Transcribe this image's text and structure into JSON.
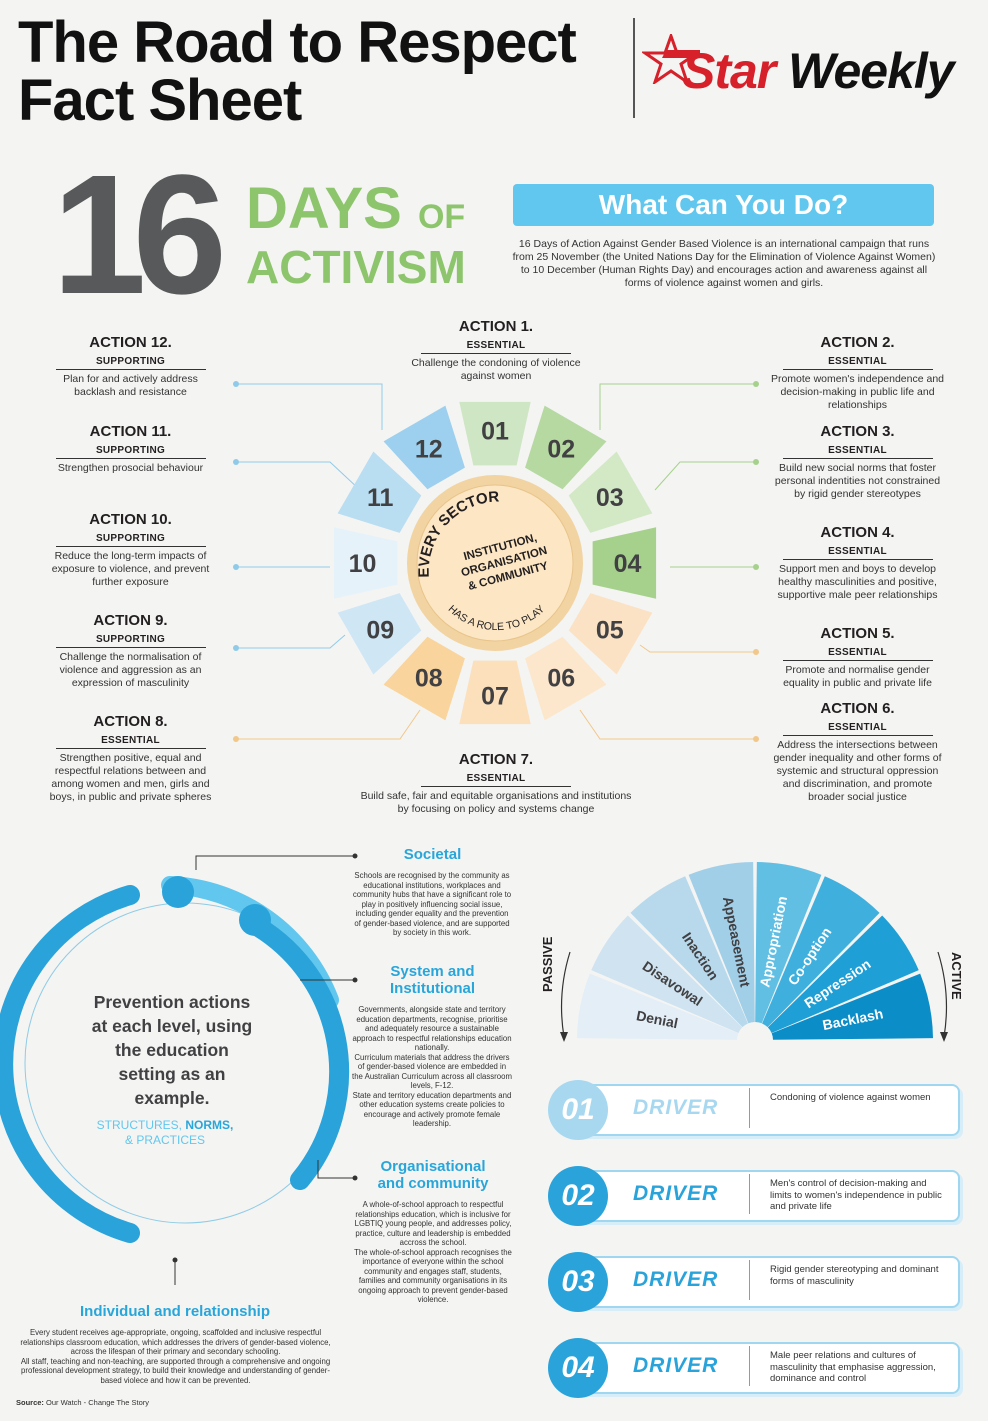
{
  "header": {
    "title_line1": "The Road to Respect",
    "title_line2": "Fact Sheet"
  },
  "logo": {
    "star": "Star",
    "weekly": "Weekly",
    "icon": "star-icon",
    "brand_color": "#d6202a"
  },
  "hero": {
    "number": "16",
    "days": "DAYS",
    "of": "OF",
    "activism": "ACTIVISM"
  },
  "what_can_you_do": {
    "heading": "What Can You Do?",
    "intro": "16 Days of Action Against Gender Based Violence is an international campaign that runs from 25 November (the United Nations Day for the Elimination of Violence Against Women) to 10 December (Human Rights Day) and encourages action and awareness against all forms of violence against women and girls."
  },
  "actions": [
    {
      "title": "ACTION 1.",
      "category": "ESSENTIAL",
      "desc": "Challenge the condoning of violence against women"
    },
    {
      "title": "ACTION 2.",
      "category": "ESSENTIAL",
      "desc": "Promote women's independence and decision-making in public life and relationships"
    },
    {
      "title": "ACTION 3.",
      "category": "ESSENTIAL",
      "desc": "Build new social norms that foster personal indentities not constrained by rigid gender stereotypes"
    },
    {
      "title": "ACTION 4.",
      "category": "ESSENTIAL",
      "desc": "Support men and boys to develop healthy masculinities and positive, supportive male peer relationships"
    },
    {
      "title": "ACTION 5.",
      "category": "ESSENTIAL",
      "desc": "Promote and normalise gender equality in public and private life"
    },
    {
      "title": "ACTION 6.",
      "category": "ESSENTIAL",
      "desc": "Address the intersections between gender inequality and other forms of systemic and structural oppression and discrimination, and promote broader social justice"
    },
    {
      "title": "ACTION 7.",
      "category": "ESSENTIAL",
      "desc": "Build safe, fair and equitable organisations and institutions by focusing on policy and systems change"
    },
    {
      "title": "ACTION 8.",
      "category": "ESSENTIAL",
      "desc": "Strengthen positive, equal and respectful relations between and among women and men, girls and boys, in public and private spheres"
    },
    {
      "title": "ACTION 9.",
      "category": "SUPPORTING",
      "desc": "Challenge the normalisation of violence and aggression as an expression of masculinity"
    },
    {
      "title": "ACTION 10.",
      "category": "SUPPORTING",
      "desc": "Reduce the long-term impacts of exposure to violence, and prevent further exposure"
    },
    {
      "title": "ACTION 11.",
      "category": "SUPPORTING",
      "desc": "Strengthen prosocial behaviour"
    },
    {
      "title": "ACTION 12.",
      "category": "SUPPORTING",
      "desc": "Plan for and actively address backlash and resistance"
    }
  ],
  "wheel": {
    "segments": [
      "01",
      "02",
      "03",
      "04",
      "05",
      "06",
      "07",
      "08",
      "09",
      "10",
      "11",
      "12"
    ],
    "colors": [
      "#cfe6c4",
      "#b5d9a1",
      "#d3e9c6",
      "#a6d18c",
      "#fbe2c4",
      "#fce7cc",
      "#fbe0bb",
      "#f9d49c",
      "#cfe6f5",
      "#e6f2fa",
      "#b9ddf1",
      "#9dd0ee"
    ],
    "center_top": "EVERY SECTOR",
    "center_mid": [
      "INSTITUTION,",
      "ORGANISATION",
      "& COMMUNITY"
    ],
    "center_bottom": "HAS A ROLE TO PLAY"
  },
  "levels": {
    "societal": {
      "title": "Societal",
      "body": "Schools are recognised by the community as educational institutions, workplaces and community hubs that have a significant role to play in positively influencing social issue, including gender equality and the prevention of gender-based violence, and are supported by society in this work."
    },
    "system": {
      "title_line1": "System and",
      "title_line2": "Institutional",
      "body1": "Governments, alongside state and territory education departments, recognise, prioritise and adequately resource a sustainable approach to respectful relationships education nationally.",
      "body2": "Curriculum materials that address the drivers of gender-based violence are embedded in the Australian Curriculum across all classroom levels, F-12.",
      "body3": "State and territory education departments and other education systems create policies to encourage and actively promote female leadership."
    },
    "organisational": {
      "title_line1": "Organisational",
      "title_line2": "and community",
      "body1": "A whole-of-school approach to respectful relationships education, which is inclusive for LGBTIQ young people, and addresses policy, practice, culture and leadership is embedded accross the school.",
      "body2": "The whole-of-school approach recognises the importance of everyone within the school community and engages staff, students, families and community organisations in its ongoing approach to prevent gender-based violence."
    },
    "individual": {
      "title": "Individual and relationship",
      "body1": "Every student receives age-appropriate, ongoing, scaffolded and inclusive respectful relationships classroom education, which addresses the drivers of gender-based violence, across the lifespan of their primary and secondary schooling.",
      "body2": "All staff, teaching and non-teaching, are supported through a comprehensive and ongoing professional development strategy, to build their knowledge and understanding of gender-based violece and how it can be prevented."
    }
  },
  "prevention": {
    "line1": "Prevention actions",
    "line2": "at each level, using",
    "line3": "the education",
    "line4": "setting as an",
    "line5": "example.",
    "structures": "STRUCTURES,",
    "norms": "NORMS,",
    "practices": "& PRACTICES"
  },
  "source": {
    "label": "Source:",
    "text": "Our Watch - Change The Story"
  },
  "gauge": {
    "passive": "PASSIVE",
    "active": "ACTIVE",
    "segments": [
      "Denial",
      "Disavowal",
      "Inaction",
      "Appeasement",
      "Appropriation",
      "Co-option",
      "Repression",
      "Backlash"
    ],
    "colors": [
      "#e3eef6",
      "#cfe3f0",
      "#b8d9ec",
      "#a2cfe8",
      "#62bfe4",
      "#3fb0de",
      "#1e9fd6",
      "#0b8dc8"
    ]
  },
  "drivers": [
    {
      "num": "01",
      "label": "DRIVER",
      "desc": "Condoning of violence against women",
      "color": "#a7d8f0",
      "label_color": "#a7d8f0"
    },
    {
      "num": "02",
      "label": "DRIVER",
      "desc": "Men's control of decision-making and limits to women's independence in public and private life",
      "color": "#2aa3da",
      "label_color": "#2aa3da"
    },
    {
      "num": "03",
      "label": "DRIVER",
      "desc": "Rigid gender stereotyping and dominant forms of masculinity",
      "color": "#2aa3da",
      "label_color": "#2aa3da"
    },
    {
      "num": "04",
      "label": "DRIVER",
      "desc": "Male peer relations and cultures of masculinity that emphasise aggression, dominance and control",
      "color": "#2aa3da",
      "label_color": "#2aa3da"
    }
  ]
}
